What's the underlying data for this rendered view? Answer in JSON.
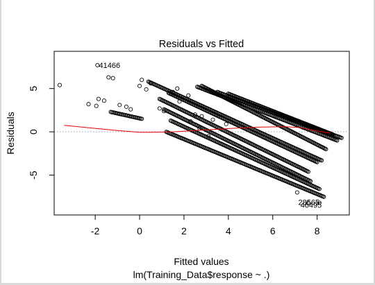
{
  "chart_data": {
    "type": "scatter",
    "title": "Residuals vs Fitted",
    "xlabel": "Fitted values",
    "subtitle": "lm(Training_Data$response ~ .)",
    "ylabel": "Residuals",
    "xlim": [
      -3.85,
      9.45
    ],
    "ylim": [
      -9.6,
      9.3
    ],
    "x_ticks": [
      -2,
      0,
      2,
      4,
      6,
      8
    ],
    "x_tick_labels": [
      "-2",
      "0",
      "2",
      "4",
      "6",
      "8"
    ],
    "y_ticks": [
      -5,
      0,
      5
    ],
    "y_tick_labels": [
      "-5",
      "0",
      "5"
    ],
    "grid": false,
    "reference_line": {
      "y": 0,
      "style": "dotted",
      "color": "#9a9a9a"
    },
    "smoother": {
      "color": "#e00000",
      "points": [
        [
          -3.4,
          0.75
        ],
        [
          -2.0,
          0.4
        ],
        [
          -1.0,
          0.15
        ],
        [
          0.0,
          -0.05
        ],
        [
          0.5,
          -0.05
        ],
        [
          1.5,
          0.0
        ],
        [
          2.5,
          0.15
        ],
        [
          3.5,
          0.3
        ],
        [
          4.5,
          0.45
        ],
        [
          5.5,
          0.55
        ],
        [
          6.5,
          0.6
        ],
        [
          7.2,
          0.5
        ],
        [
          8.0,
          0.1
        ],
        [
          8.6,
          -0.15
        ]
      ]
    },
    "bands": [
      {
        "x0": 1.1,
        "y0": 2.6,
        "x1": 7.7,
        "y1": -5.7
      },
      {
        "x0": 1.4,
        "y0": 1.3,
        "x1": 8.1,
        "y1": -6.6
      },
      {
        "x0": 1.2,
        "y0": 0.0,
        "x1": 8.3,
        "y1": -7.5
      },
      {
        "x0": 0.9,
        "y0": 3.8,
        "x1": 7.6,
        "y1": -4.6
      },
      {
        "x0": 1.3,
        "y0": 4.5,
        "x1": 8.0,
        "y1": -3.5
      },
      {
        "x0": 0.4,
        "y0": 5.8,
        "x1": 8.2,
        "y1": -3.3
      },
      {
        "x0": 2.8,
        "y0": 5.3,
        "x1": 8.4,
        "y1": -2.0
      },
      {
        "x0": 2.6,
        "y0": 5.2,
        "x1": 8.9,
        "y1": -1.0
      },
      {
        "x0": 3.5,
        "y0": 4.6,
        "x1": 9.1,
        "y1": -0.7
      },
      {
        "x0": 4.0,
        "y0": 4.4,
        "x1": 8.7,
        "y1": -0.3
      },
      {
        "x0": -1.3,
        "y0": 2.3,
        "x1": 0.1,
        "y1": 1.5
      }
    ],
    "scattered_points": [
      [
        -3.6,
        5.4
      ],
      [
        -2.3,
        3.2
      ],
      [
        -1.95,
        3.0
      ],
      [
        -1.85,
        3.8
      ],
      [
        -1.6,
        3.6
      ],
      [
        -1.4,
        6.3
      ],
      [
        -1.2,
        6.2
      ],
      [
        -0.9,
        3.1
      ],
      [
        -0.6,
        2.9
      ],
      [
        -0.4,
        2.6
      ],
      [
        0.0,
        5.3
      ],
      [
        0.1,
        6.0
      ],
      [
        0.5,
        5.6
      ],
      [
        0.3,
        4.9
      ],
      [
        0.9,
        2.7
      ],
      [
        1.1,
        2.4
      ],
      [
        1.8,
        3.5
      ],
      [
        1.4,
        4.4
      ],
      [
        2.5,
        2.0
      ],
      [
        2.3,
        1.2
      ],
      [
        2.8,
        1.8
      ],
      [
        3.3,
        1.4
      ],
      [
        3.9,
        0.9
      ],
      [
        1.7,
        5.0
      ],
      [
        2.2,
        4.2
      ],
      [
        1.5,
        4.6
      ],
      [
        2.7,
        0.4
      ],
      [
        3.1,
        -0.5
      ],
      [
        7.6,
        -8.2
      ],
      [
        8.1,
        -8.2
      ],
      [
        7.1,
        -7.0
      ],
      [
        -1.9,
        7.7
      ]
    ],
    "annotations": [
      {
        "text": "41466",
        "x": -1.83,
        "y": 7.7
      },
      {
        "text": "28565",
        "x": 7.15,
        "y": -8.1
      },
      {
        "text": "46495",
        "x": 7.25,
        "y": -8.45
      }
    ]
  }
}
